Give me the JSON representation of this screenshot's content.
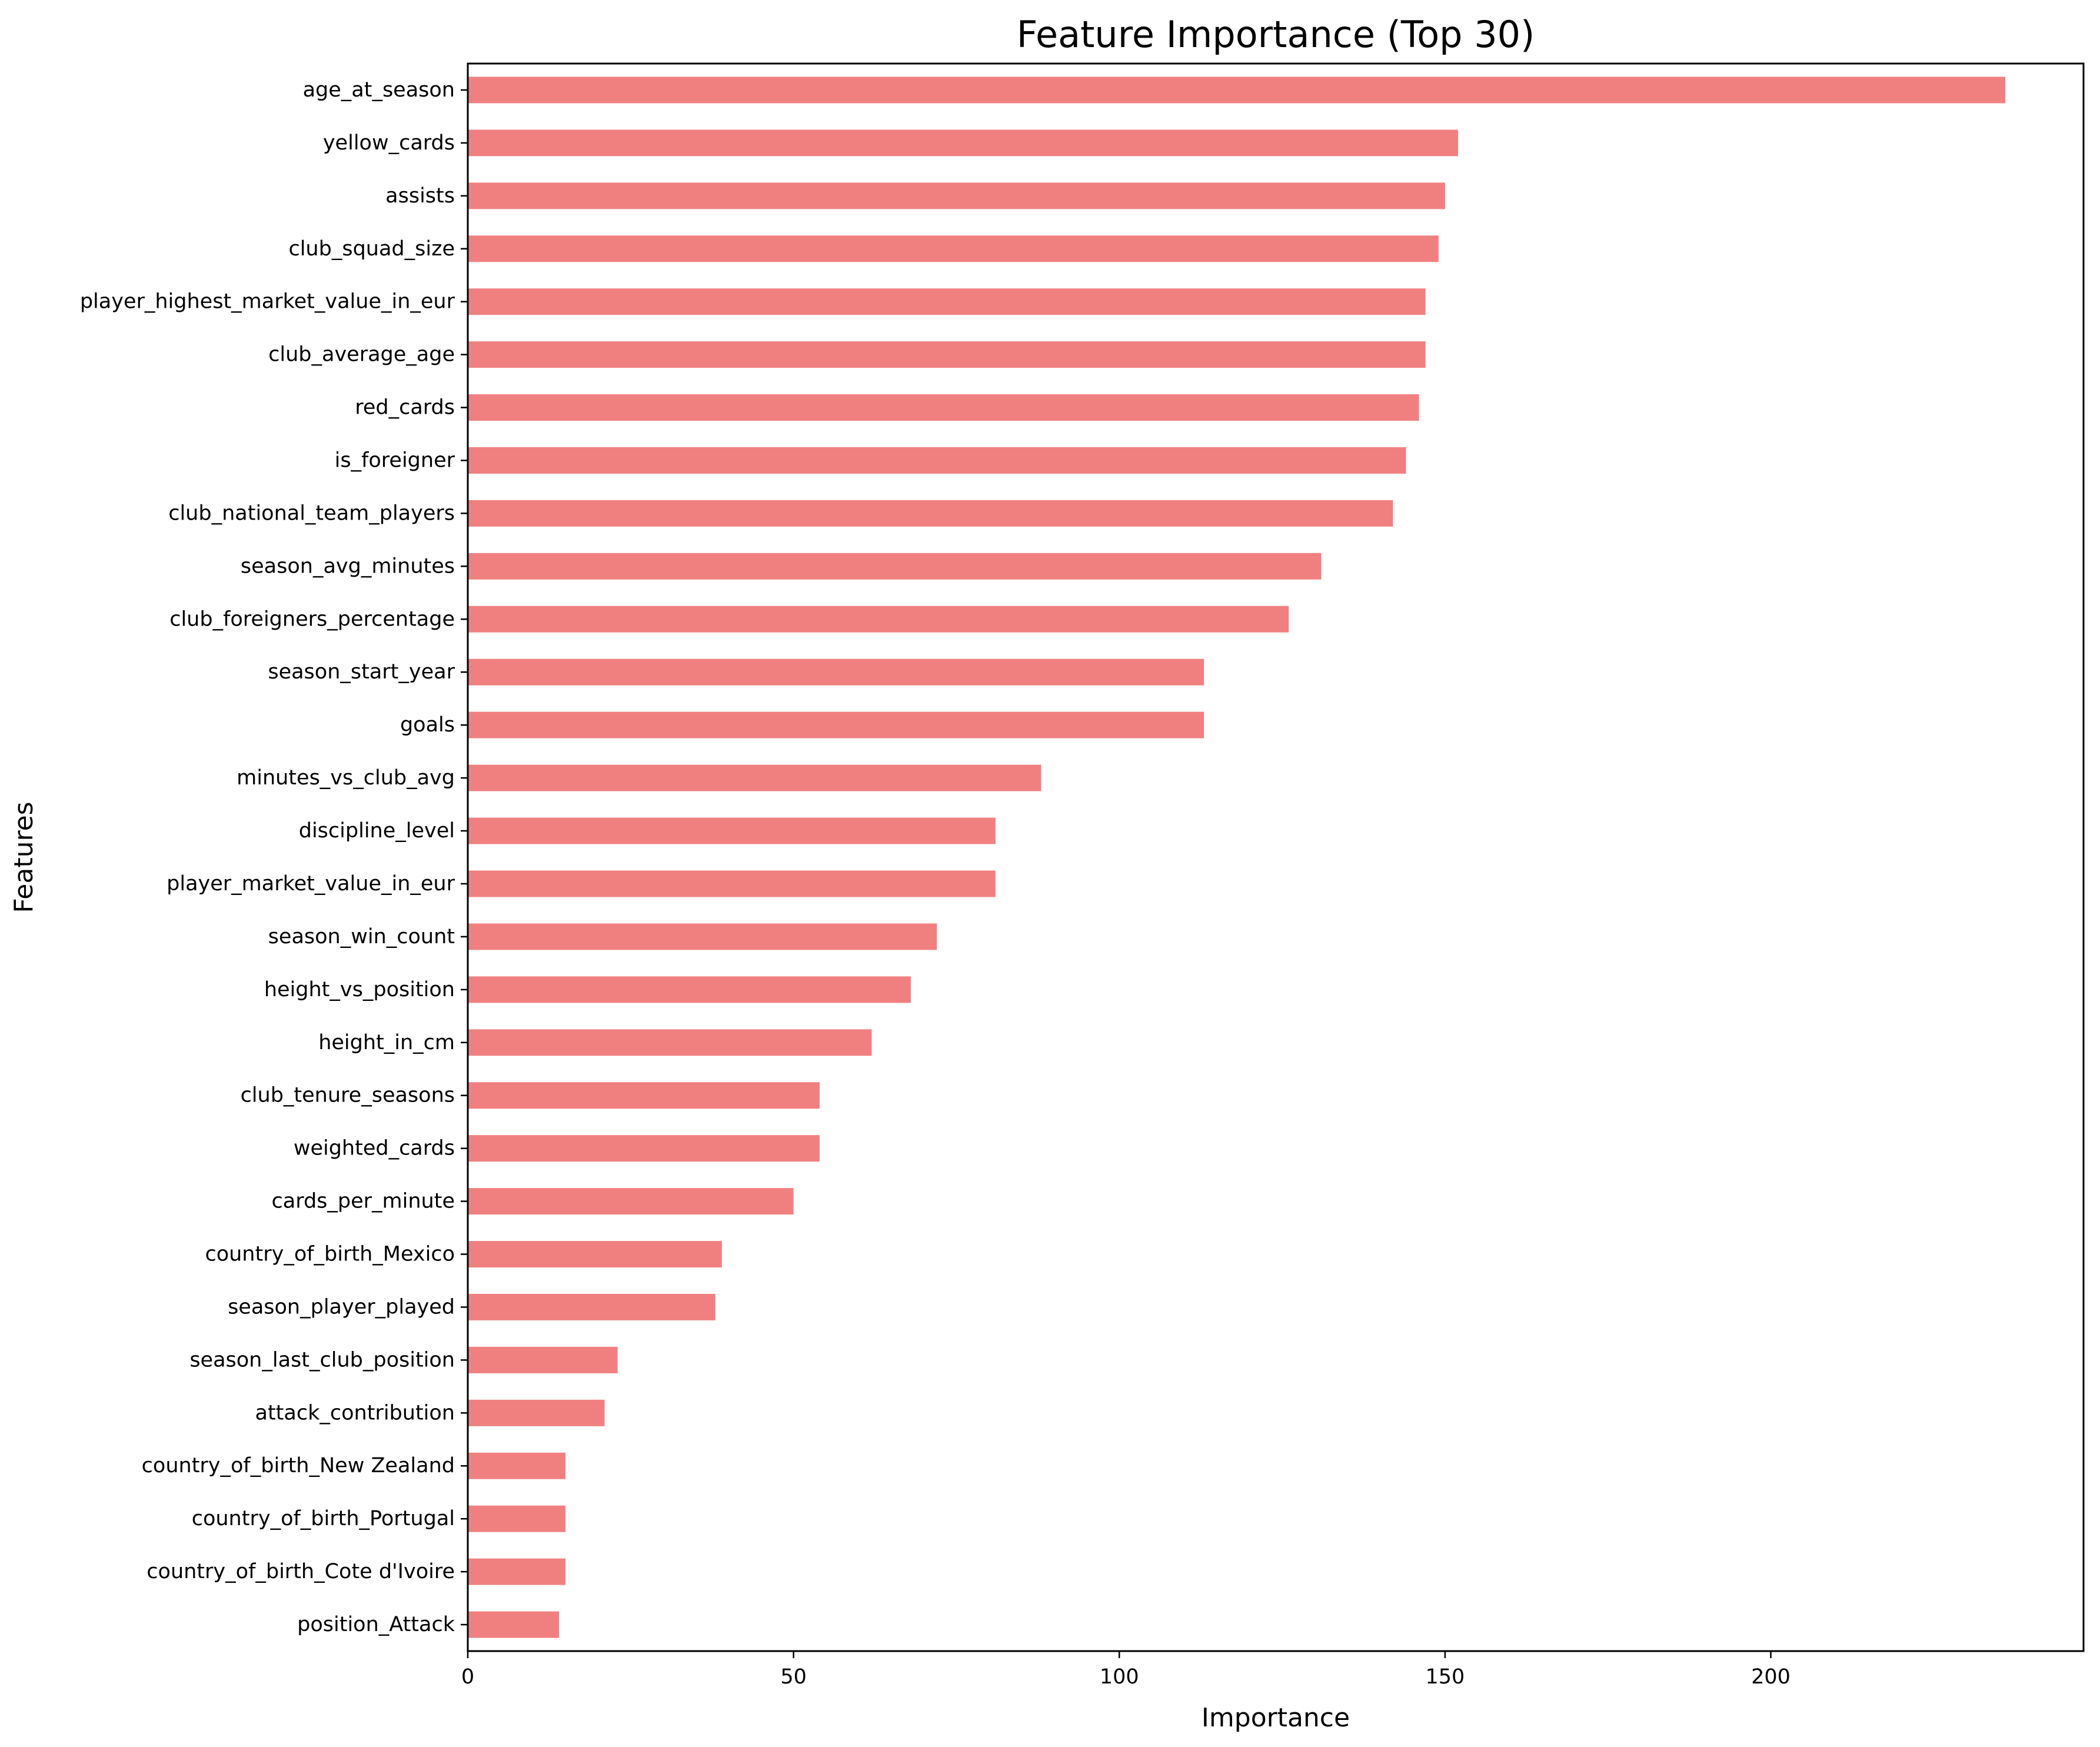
{
  "chart_data": {
    "type": "bar",
    "orientation": "horizontal",
    "title": "Feature Importance (Top 30)",
    "xlabel": "Importance",
    "ylabel": "Features",
    "xlim": [
      0,
      248
    ],
    "xticks": [
      0,
      50,
      100,
      150,
      200
    ],
    "grid": false,
    "bar_color": "#f08080",
    "categories": [
      "age_at_season",
      "yellow_cards",
      "assists",
      "club_squad_size",
      "player_highest_market_value_in_eur",
      "club_average_age",
      "red_cards",
      "is_foreigner",
      "club_national_team_players",
      "season_avg_minutes",
      "club_foreigners_percentage",
      "season_start_year",
      "goals",
      "minutes_vs_club_avg",
      "discipline_level",
      "player_market_value_in_eur",
      "season_win_count",
      "height_vs_position",
      "height_in_cm",
      "club_tenure_seasons",
      "weighted_cards",
      "cards_per_minute",
      "country_of_birth_Mexico",
      "season_player_played",
      "season_last_club_position",
      "attack_contribution",
      "country_of_birth_New Zealand",
      "country_of_birth_Portugal",
      "country_of_birth_Cote d'Ivoire",
      "position_Attack"
    ],
    "values": [
      236,
      152,
      150,
      149,
      147,
      147,
      146,
      144,
      142,
      131,
      126,
      113,
      113,
      88,
      81,
      81,
      72,
      68,
      62,
      54,
      54,
      50,
      39,
      38,
      23,
      21,
      15,
      15,
      15,
      14
    ]
  }
}
